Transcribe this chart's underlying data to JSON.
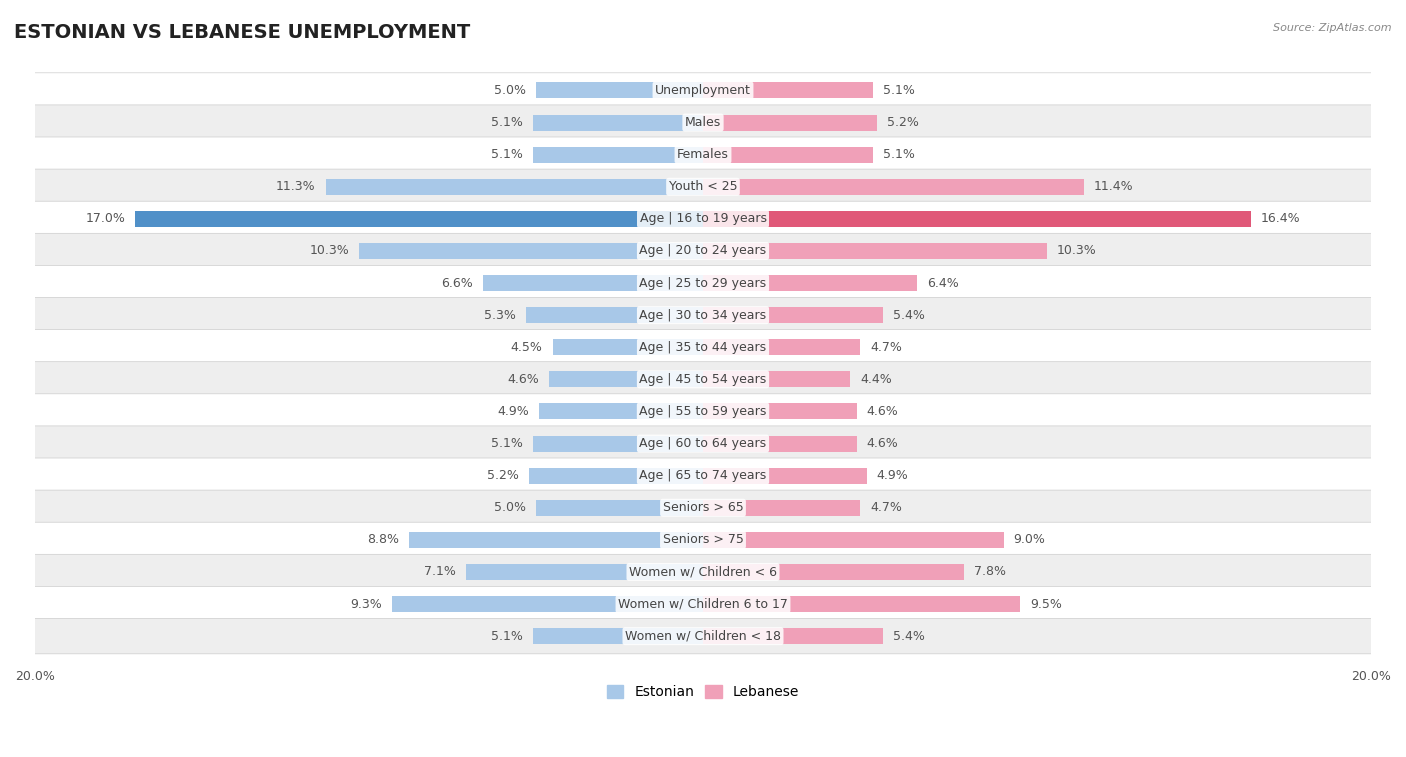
{
  "title": "ESTONIAN VS LEBANESE UNEMPLOYMENT",
  "source": "Source: ZipAtlas.com",
  "categories": [
    "Unemployment",
    "Males",
    "Females",
    "Youth < 25",
    "Age | 16 to 19 years",
    "Age | 20 to 24 years",
    "Age | 25 to 29 years",
    "Age | 30 to 34 years",
    "Age | 35 to 44 years",
    "Age | 45 to 54 years",
    "Age | 55 to 59 years",
    "Age | 60 to 64 years",
    "Age | 65 to 74 years",
    "Seniors > 65",
    "Seniors > 75",
    "Women w/ Children < 6",
    "Women w/ Children 6 to 17",
    "Women w/ Children < 18"
  ],
  "estonian": [
    5.0,
    5.1,
    5.1,
    11.3,
    17.0,
    10.3,
    6.6,
    5.3,
    4.5,
    4.6,
    4.9,
    5.1,
    5.2,
    5.0,
    8.8,
    7.1,
    9.3,
    5.1
  ],
  "lebanese": [
    5.1,
    5.2,
    5.1,
    11.4,
    16.4,
    10.3,
    6.4,
    5.4,
    4.7,
    4.4,
    4.6,
    4.6,
    4.9,
    4.7,
    9.0,
    7.8,
    9.5,
    5.4
  ],
  "estonian_color": "#a8c8e8",
  "lebanese_color": "#f0a0b8",
  "highlight_estonian_color": "#5090c8",
  "highlight_lebanese_color": "#e05878",
  "bar_height": 0.5,
  "xlim": 20.0,
  "bg_color": "#ffffff",
  "row_color_odd": "#ffffff",
  "row_color_even": "#eeeeee",
  "label_fontsize": 9,
  "category_fontsize": 9,
  "title_fontsize": 14,
  "value_color": "#555555"
}
